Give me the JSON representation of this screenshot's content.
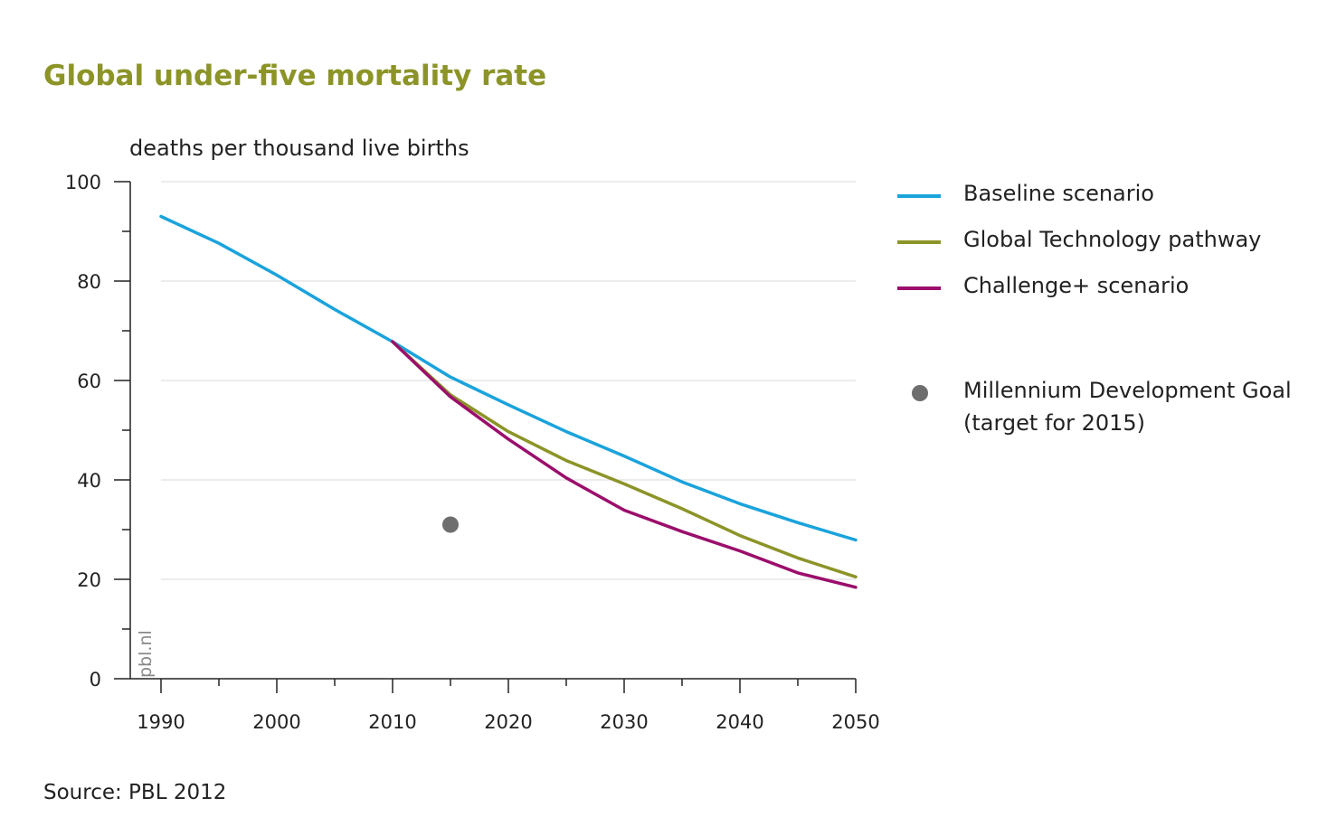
{
  "chart_data": {
    "type": "line",
    "title": "Global under-five mortality rate",
    "ylabel": "deaths per thousand live births",
    "xlabel": "",
    "xlim": [
      1987,
      2050
    ],
    "ylim": [
      0,
      100
    ],
    "x_ticks": [
      "1990",
      "2000",
      "2010",
      "2020",
      "2030",
      "2040",
      "2050"
    ],
    "y_ticks": [
      "0",
      "20",
      "40",
      "60",
      "80",
      "100"
    ],
    "grid": true,
    "legend_position": "right",
    "series": [
      {
        "name": "Baseline scenario",
        "color": "#1aa3dc",
        "x": [
          1990,
          1995,
          2000,
          2005,
          2010,
          2015,
          2020,
          2025,
          2030,
          2035,
          2040,
          2045,
          2050
        ],
        "y": [
          93,
          87.6,
          81.2,
          74.3,
          67.8,
          60.7,
          55.1,
          49.7,
          44.8,
          39.6,
          35.2,
          31.4,
          27.9
        ]
      },
      {
        "name": "Global Technology pathway",
        "color": "#8c9428",
        "x": [
          2010,
          2015,
          2020,
          2025,
          2030,
          2035,
          2040,
          2045,
          2050
        ],
        "y": [
          67.8,
          57.1,
          49.7,
          43.9,
          39.2,
          34.2,
          28.8,
          24.3,
          20.5
        ]
      },
      {
        "name": "Challenge+ scenario",
        "color": "#9b0e6b",
        "x": [
          2010,
          2015,
          2020,
          2025,
          2030,
          2035,
          2040,
          2045,
          2050
        ],
        "y": [
          67.8,
          56.7,
          48.2,
          40.4,
          33.9,
          29.6,
          25.7,
          21.3,
          18.4
        ]
      }
    ],
    "points": [
      {
        "name": "Millennium Development Goal",
        "label_line2": "(target for 2015)",
        "color": "#6e6e6e",
        "x": 2015,
        "y": 31
      }
    ],
    "watermark": "pbl.nl",
    "source": "Source: PBL 2012"
  }
}
